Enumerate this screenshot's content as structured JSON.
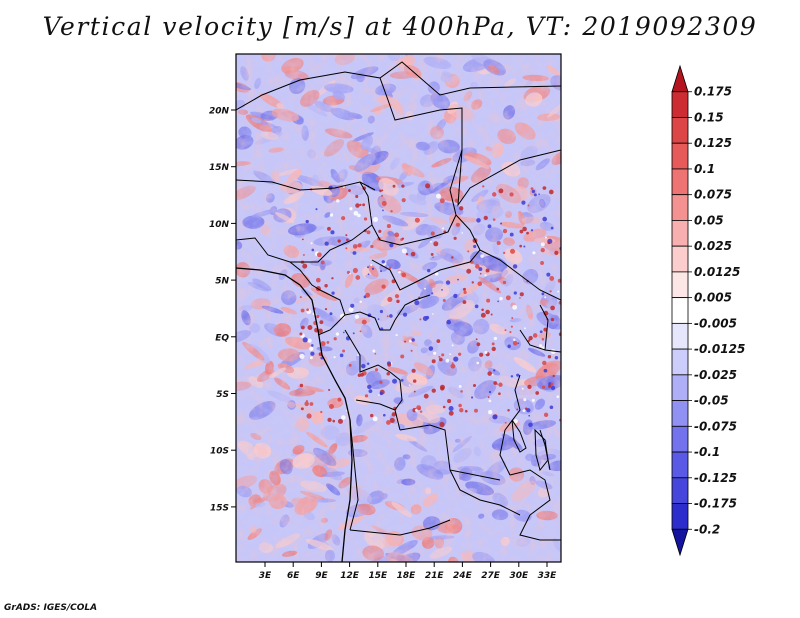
{
  "title": "Vertical velocity [m/s] at 400hPa, VT: 2019092309",
  "footer": "GrADS: IGES/COLA",
  "axes": {
    "lat_labels": [
      "20N",
      "15N",
      "10N",
      "5N",
      "EQ",
      "5S",
      "10S",
      "15S"
    ],
    "lon_labels": [
      "3E",
      "6E",
      "9E",
      "12E",
      "15E",
      "18E",
      "21E",
      "24E",
      "27E",
      "30E",
      "33E"
    ]
  },
  "colorbar": {
    "levels": [
      "0.175",
      "0.15",
      "0.125",
      "0.1",
      "0.075",
      "0.05",
      "0.025",
      "0.0125",
      "0.005",
      "-0.005",
      "-0.0125",
      "-0.025",
      "-0.05",
      "-0.075",
      "-0.1",
      "-0.125",
      "-0.175",
      "-0.2"
    ],
    "colors": [
      "#b4141e",
      "#cd2d32",
      "#dc4646",
      "#e65a5a",
      "#ee7373",
      "#f49191",
      "#f8afaf",
      "#fbcdcd",
      "#fde6e6",
      "#ffffff",
      "#e6e6fd",
      "#cdcdfb",
      "#afaff8",
      "#9191f4",
      "#7373ee",
      "#5a5ae6",
      "#4646dc",
      "#2d2dcd",
      "#14149e"
    ]
  }
}
